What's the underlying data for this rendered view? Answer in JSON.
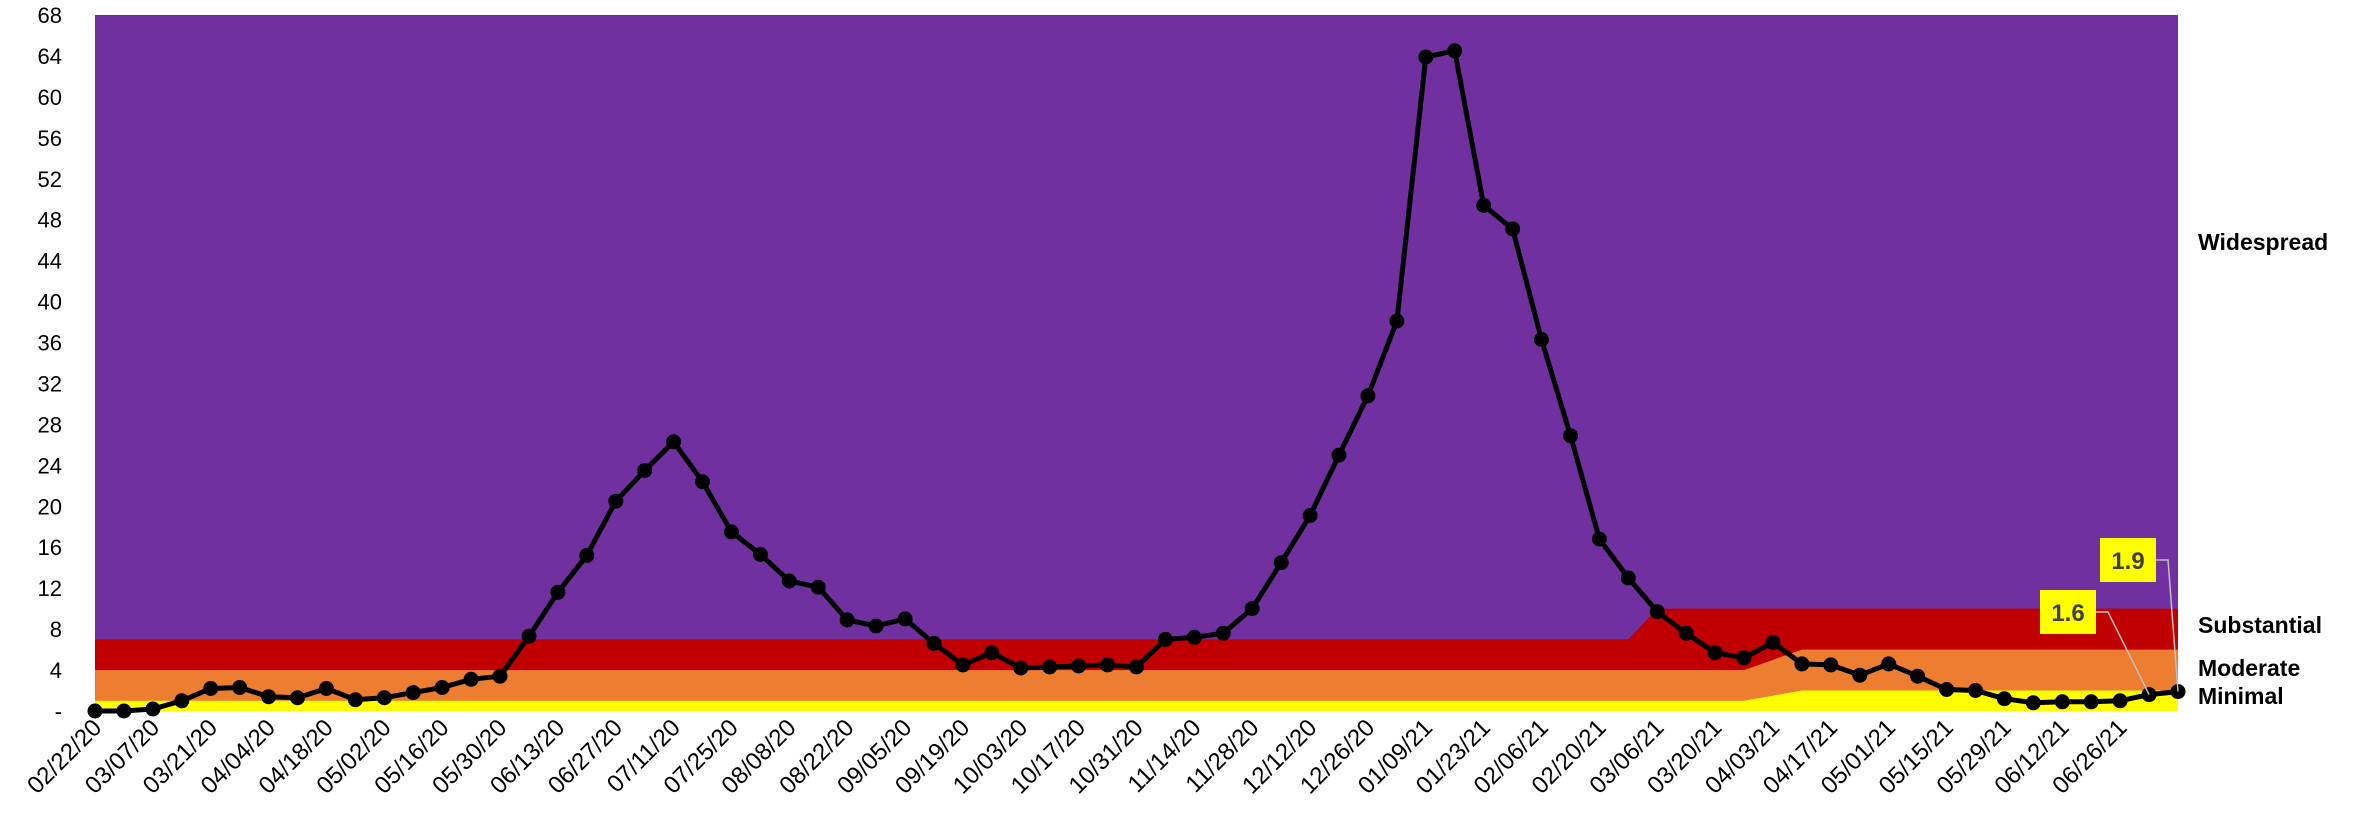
{
  "chart_data": {
    "type": "line",
    "title": "",
    "xlabel": "",
    "ylabel": "",
    "ylim": [
      0,
      68
    ],
    "y_ticks": [
      0,
      4,
      8,
      12,
      16,
      20,
      24,
      28,
      32,
      36,
      40,
      44,
      48,
      52,
      56,
      60,
      64,
      68
    ],
    "y_tick_labels": [
      "-",
      "4",
      "8",
      "12",
      "16",
      "20",
      "24",
      "28",
      "32",
      "36",
      "40",
      "44",
      "48",
      "52",
      "56",
      "60",
      "64",
      "68"
    ],
    "x_tick_labels": [
      "02/22/20",
      "03/07/20",
      "03/21/20",
      "04/04/20",
      "04/18/20",
      "05/02/20",
      "05/16/20",
      "05/30/20",
      "06/13/20",
      "06/27/20",
      "07/11/20",
      "07/25/20",
      "08/08/20",
      "08/22/20",
      "09/05/20",
      "09/19/20",
      "10/03/20",
      "10/17/20",
      "10/31/20",
      "11/14/20",
      "11/28/20",
      "12/12/20",
      "12/26/20",
      "01/09/21",
      "01/23/21",
      "02/06/21",
      "02/20/21",
      "03/06/21",
      "03/20/21",
      "04/03/21",
      "04/17/21",
      "05/01/21",
      "05/15/21",
      "05/29/21",
      "06/12/21",
      "06/26/21"
    ],
    "x_tick_index_step": 2,
    "series": [
      {
        "color": "#000000",
        "values": [
          0,
          0,
          0.2,
          1,
          2.2,
          2.3,
          1.4,
          1.3,
          2.2,
          1.1,
          1.3,
          1.8,
          2.3,
          3.1,
          3.4,
          7.3,
          11.6,
          15.2,
          20.5,
          23.5,
          26.3,
          22.4,
          17.5,
          15.3,
          12.7,
          12.1,
          8.9,
          8.3,
          9.0,
          6.6,
          4.5,
          5.7,
          4.2,
          4.3,
          4.4,
          4.5,
          4.3,
          7.0,
          7.2,
          7.6,
          10.0,
          14.5,
          19.1,
          25.0,
          30.8,
          38.1,
          63.9,
          64.5,
          49.4,
          47.1,
          36.3,
          26.9,
          16.8,
          13.0,
          9.7,
          7.6,
          5.7,
          5.2,
          6.7,
          4.6,
          4.5,
          3.5,
          4.6,
          3.4,
          2.1,
          2.0,
          1.2,
          0.8,
          0.9,
          0.9,
          1.0,
          1.6,
          1.9
        ]
      }
    ],
    "bands": [
      {
        "name": "Widespread",
        "color": "#7030A0"
      },
      {
        "name": "Substantial",
        "color": "#C00000"
      },
      {
        "name": "Moderate",
        "color": "#ED7D31"
      },
      {
        "name": "Minimal",
        "color": "#FFFF00"
      }
    ],
    "thresholds": [
      {
        "from_index": 0,
        "to_index": 53,
        "minimal": 1,
        "moderate": 4,
        "substantial": 7
      },
      {
        "from_index": 54,
        "to_index": 57,
        "minimal": 1,
        "moderate": 4,
        "substantial": 10
      },
      {
        "from_index": 59,
        "to_index": 72,
        "minimal": 2,
        "moderate": 6,
        "substantial": 10
      }
    ],
    "callouts": [
      {
        "label": "1.6",
        "point_index": 71
      },
      {
        "label": "1.9",
        "point_index": 72
      }
    ],
    "grid": false,
    "legend": "right (band labels)"
  }
}
